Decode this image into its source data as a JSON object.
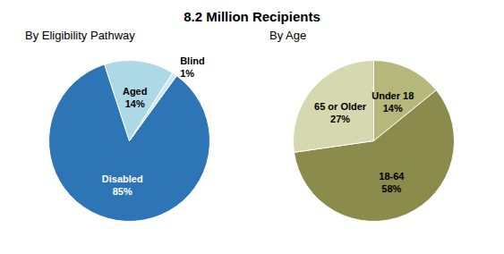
{
  "title": "8.2 Million Recipients",
  "chart_data": [
    {
      "type": "pie",
      "subtitle": "By Eligibility Pathway",
      "categories": [
        "Disabled",
        "Aged",
        "Blind"
      ],
      "values": [
        85,
        14,
        1
      ],
      "value_labels": [
        "85%",
        "14%",
        "1%"
      ],
      "colors": [
        "#2E75B6",
        "#ADD8E6",
        "#D0E8F5"
      ],
      "data_labels": true
    },
    {
      "type": "pie",
      "subtitle": "By Age",
      "categories": [
        "Under 18",
        "18-64",
        "65 or Older"
      ],
      "values": [
        14,
        58,
        27
      ],
      "value_labels": [
        "14%",
        "58%",
        "27%"
      ],
      "colors": [
        "#B5B87A",
        "#8B8B4B",
        "#D6D9B0"
      ],
      "data_labels": true
    }
  ]
}
